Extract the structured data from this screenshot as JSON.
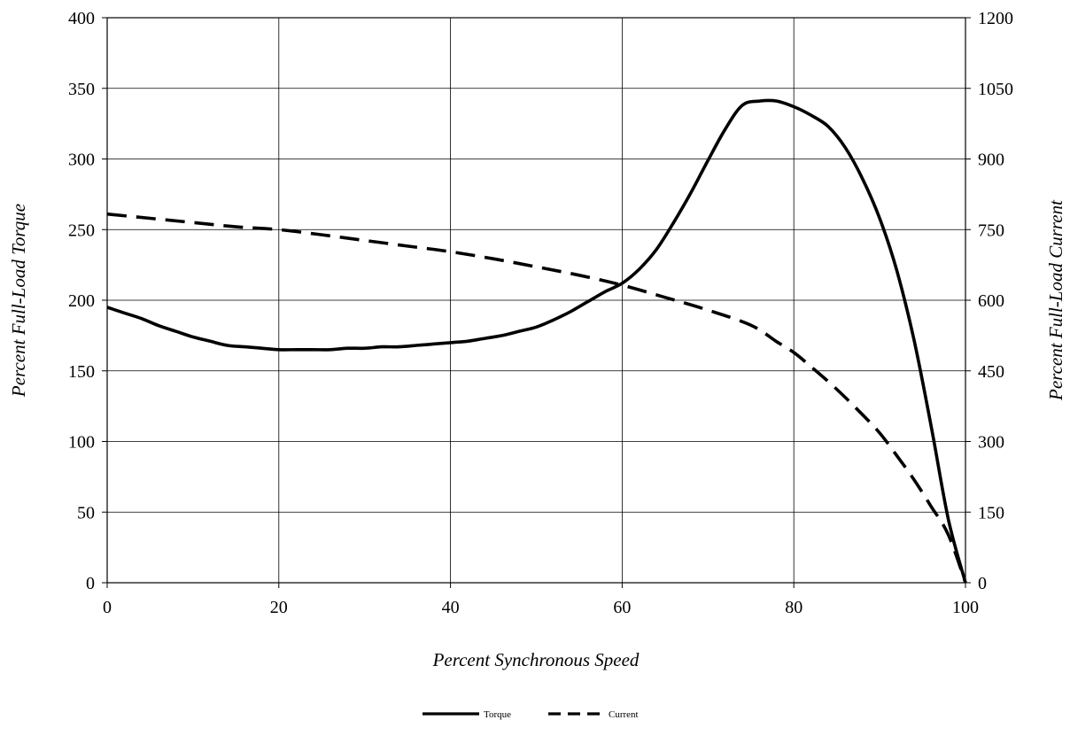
{
  "chart_data": {
    "type": "line",
    "title": "",
    "xlabel": "Percent Synchronous Speed",
    "ylabel": "Percent Full-Load Torque",
    "y2label": "Percent Full-Load Current",
    "xlim": [
      0,
      100
    ],
    "ylim": [
      0,
      400
    ],
    "y2lim": [
      0,
      1200
    ],
    "xticks": [
      0,
      20,
      40,
      60,
      80,
      100
    ],
    "yticks": [
      0,
      50,
      100,
      150,
      200,
      250,
      300,
      350,
      400
    ],
    "y2ticks": [
      0,
      150,
      300,
      450,
      600,
      750,
      900,
      1050,
      1200
    ],
    "grid": true,
    "legend_position": "bottom-center",
    "series": [
      {
        "name": "Torque",
        "axis": "left",
        "style": "solid",
        "color": "#000000",
        "x": [
          0,
          2,
          4,
          6,
          8,
          10,
          12,
          14,
          16,
          18,
          20,
          22,
          24,
          26,
          28,
          30,
          32,
          34,
          36,
          38,
          40,
          42,
          44,
          46,
          48,
          50,
          52,
          54,
          56,
          58,
          60,
          62,
          64,
          66,
          68,
          70,
          72,
          74,
          76,
          78,
          80,
          82,
          84,
          86,
          88,
          90,
          92,
          94,
          96,
          98,
          100
        ],
        "y": [
          195,
          191,
          187,
          182,
          178,
          174,
          171,
          168,
          167,
          166,
          165,
          165,
          165,
          165,
          166,
          166,
          167,
          167,
          168,
          169,
          170,
          171,
          173,
          175,
          178,
          181,
          186,
          192,
          199,
          206,
          212,
          222,
          236,
          255,
          276,
          299,
          321,
          338,
          341,
          341,
          337,
          331,
          323,
          308,
          286,
          258,
          221,
          172,
          111,
          45,
          0
        ]
      },
      {
        "name": "Current",
        "axis": "right",
        "style": "dashed",
        "color": "#000000",
        "x": [
          0,
          5,
          10,
          15,
          20,
          25,
          30,
          35,
          40,
          45,
          50,
          55,
          60,
          65,
          70,
          75,
          78,
          80,
          82,
          85,
          88,
          90,
          92,
          94,
          96,
          98,
          100
        ],
        "y": [
          783,
          774,
          765,
          756,
          750,
          739,
          727,
          715,
          703,
          688,
          671,
          653,
          632,
          606,
          579,
          547,
          512,
          489,
          459,
          411,
          357,
          318,
          270,
          219,
          162,
          102,
          0
        ]
      }
    ]
  }
}
